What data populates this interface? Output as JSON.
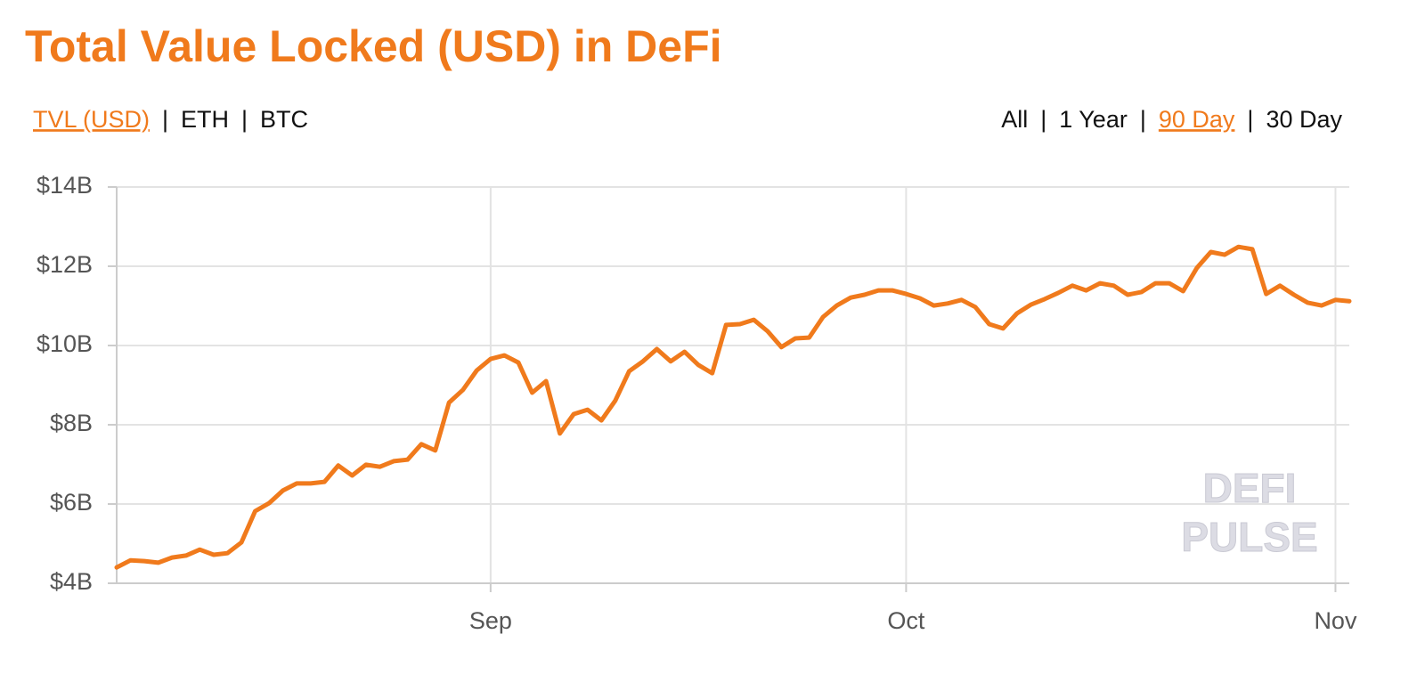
{
  "chart_data": {
    "type": "line",
    "title": "Total Value Locked (USD) in DeFi",
    "controls": {
      "separator": "|",
      "metric": [
        "TVL (USD)",
        "ETH",
        "BTC"
      ],
      "metric_selected": 0,
      "range": [
        "All",
        "1 Year",
        "90 Day",
        "30 Day"
      ],
      "range_selected": 2
    },
    "watermark": [
      "DEFI",
      "PULSE"
    ],
    "color": "#f07a1c",
    "categories": [
      null,
      null,
      null,
      null,
      null,
      null,
      null,
      null,
      null,
      null,
      null,
      null,
      null,
      null,
      null,
      null,
      null,
      null,
      null,
      null,
      null,
      null,
      null,
      null,
      null,
      null,
      null,
      "Sep",
      null,
      null,
      null,
      null,
      null,
      null,
      null,
      null,
      null,
      null,
      null,
      null,
      null,
      null,
      null,
      null,
      null,
      null,
      null,
      null,
      null,
      null,
      null,
      null,
      null,
      null,
      null,
      null,
      null,
      "Oct",
      null,
      null,
      null,
      null,
      null,
      null,
      null,
      null,
      null,
      null,
      null,
      null,
      null,
      null,
      null,
      null,
      null,
      null,
      null,
      null,
      null,
      null,
      null,
      null,
      null,
      null,
      null,
      null,
      null,
      null,
      "Nov",
      null
    ],
    "values": [
      4.4,
      4.58,
      4.56,
      4.52,
      4.65,
      4.7,
      4.85,
      4.72,
      4.76,
      5.03,
      5.82,
      6.02,
      6.34,
      6.52,
      6.52,
      6.56,
      6.97,
      6.72,
      6.99,
      6.94,
      7.08,
      7.12,
      7.51,
      7.35,
      8.56,
      8.88,
      9.37,
      9.66,
      9.75,
      9.57,
      8.81,
      9.1,
      7.78,
      8.27,
      8.38,
      8.11,
      8.61,
      9.35,
      9.6,
      9.91,
      9.6,
      9.84,
      9.51,
      9.3,
      10.52,
      10.54,
      10.65,
      10.36,
      9.96,
      10.18,
      10.2,
      10.72,
      11.01,
      11.21,
      11.28,
      11.39,
      11.39,
      11.3,
      11.19,
      11.01,
      11.06,
      11.15,
      10.97,
      10.54,
      10.43,
      10.81,
      11.03,
      11.17,
      11.33,
      11.51,
      11.39,
      11.57,
      11.51,
      11.28,
      11.35,
      11.57,
      11.57,
      11.37,
      11.96,
      12.36,
      12.29,
      12.49,
      12.43,
      11.3,
      11.51,
      11.28,
      11.08,
      11.01,
      11.15,
      11.12
    ],
    "ylim": [
      4,
      14
    ],
    "yticks": [
      {
        "value": 4,
        "label": "$4B"
      },
      {
        "value": 6,
        "label": "$6B"
      },
      {
        "value": 8,
        "label": "$8B"
      },
      {
        "value": 10,
        "label": "$10B"
      },
      {
        "value": 12,
        "label": "$12B"
      },
      {
        "value": 14,
        "label": "$14B"
      }
    ],
    "grid": true
  }
}
